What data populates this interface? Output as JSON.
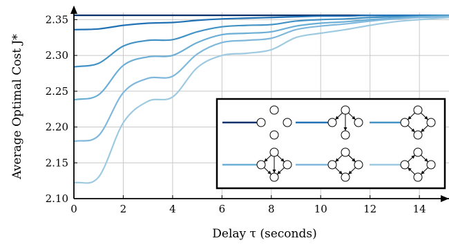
{
  "chart_data": {
    "type": "line",
    "xlabel": "Delay τ (seconds)",
    "ylabel": "Average Optimal Cost J*",
    "xlim": [
      0,
      15.2
    ],
    "ylim": [
      2.1,
      2.36
    ],
    "x_ticks": [
      "0",
      "2",
      "4",
      "6",
      "8",
      "10",
      "12",
      "14"
    ],
    "y_ticks": [
      "2.10",
      "2.15",
      "2.20",
      "2.25",
      "2.30",
      "2.35"
    ],
    "grid": true,
    "legend_placement": "bottom-right",
    "legend_entries": [
      "no links",
      "tree",
      "ring",
      "ring with chord",
      "ring with chord variant",
      "directed ring"
    ],
    "colors": [
      "#08306b",
      "#2171b5",
      "#4292c6",
      "#6baed6",
      "#7fb8dc",
      "#9ecae1"
    ],
    "series": [
      {
        "color": "#08306b",
        "x": [
          0,
          15.2
        ],
        "y": [
          2.356,
          2.356
        ]
      },
      {
        "color": "#2171b5",
        "x": [
          0,
          1,
          2,
          3,
          4,
          5,
          6,
          7,
          8,
          9,
          10,
          11,
          12,
          13,
          14,
          15.2
        ],
        "y": [
          2.336,
          2.337,
          2.342,
          2.345,
          2.346,
          2.349,
          2.351,
          2.352,
          2.353,
          2.354,
          2.355,
          2.355,
          2.356,
          2.356,
          2.356,
          2.356
        ]
      },
      {
        "color": "#4292c6",
        "x": [
          0,
          1,
          2,
          3,
          4,
          5,
          6,
          7,
          8,
          9,
          10,
          11,
          12,
          13,
          14,
          15.2
        ],
        "y": [
          2.284,
          2.289,
          2.313,
          2.321,
          2.322,
          2.333,
          2.34,
          2.342,
          2.343,
          2.348,
          2.35,
          2.351,
          2.353,
          2.354,
          2.355,
          2.356
        ]
      },
      {
        "color": "#6baed6",
        "x": [
          0,
          1,
          2,
          3,
          4,
          5,
          6,
          7,
          8,
          9,
          10,
          11,
          12,
          13,
          14,
          15.2
        ],
        "y": [
          2.238,
          2.245,
          2.286,
          2.298,
          2.3,
          2.318,
          2.329,
          2.331,
          2.333,
          2.341,
          2.345,
          2.347,
          2.35,
          2.352,
          2.354,
          2.355
        ]
      },
      {
        "color": "#7fb8dc",
        "x": [
          0,
          1,
          2,
          3,
          4,
          5,
          6,
          7,
          8,
          9,
          10,
          11,
          12,
          13,
          14,
          15.2
        ],
        "y": [
          2.18,
          2.188,
          2.248,
          2.268,
          2.271,
          2.302,
          2.318,
          2.321,
          2.324,
          2.336,
          2.341,
          2.344,
          2.348,
          2.351,
          2.353,
          2.354
        ]
      },
      {
        "color": "#9ecae1",
        "x": [
          0,
          1,
          2,
          3,
          4,
          5,
          6,
          7,
          8,
          9,
          10,
          11,
          12,
          13,
          14,
          15.2
        ],
        "y": [
          2.122,
          2.13,
          2.206,
          2.236,
          2.242,
          2.283,
          2.3,
          2.303,
          2.308,
          2.325,
          2.331,
          2.336,
          2.342,
          2.347,
          2.35,
          2.353
        ]
      }
    ]
  }
}
